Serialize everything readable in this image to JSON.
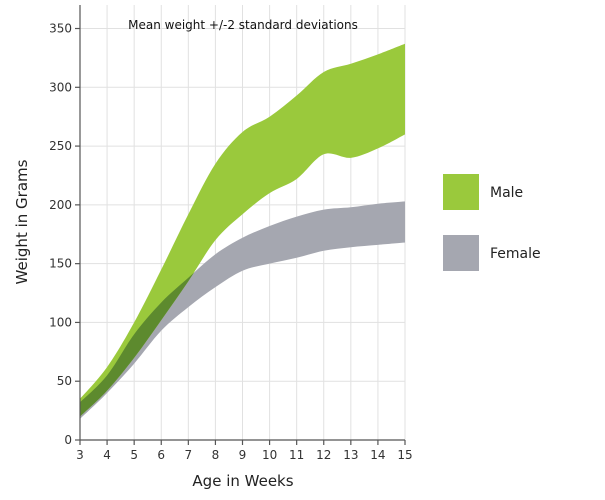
{
  "chart_data": {
    "type": "area",
    "annotation": "Mean weight +/-2 standard deviations",
    "xlabel": "Age in Weeks",
    "ylabel": "Weight in Grams",
    "xlim": [
      3,
      15
    ],
    "ylim": [
      0,
      370
    ],
    "x_ticks": [
      3,
      4,
      5,
      6,
      7,
      8,
      9,
      10,
      11,
      12,
      13,
      14,
      15
    ],
    "y_ticks": [
      0,
      50,
      100,
      150,
      200,
      250,
      300,
      350
    ],
    "grid": true,
    "legend_position": "right",
    "x": [
      3,
      4,
      5,
      6,
      7,
      8,
      9,
      10,
      11,
      12,
      13,
      14,
      15
    ],
    "series": [
      {
        "name": "Male",
        "color": "#9ac93c",
        "upper": [
          35,
          62,
          100,
          145,
          192,
          235,
          262,
          275,
          293,
          313,
          320,
          328,
          337
        ],
        "lower": [
          20,
          42,
          70,
          102,
          135,
          170,
          192,
          210,
          222,
          243,
          240,
          248,
          260
        ]
      },
      {
        "name": "Female",
        "color": "#a5a7b0",
        "upper": [
          32,
          55,
          90,
          117,
          138,
          158,
          172,
          182,
          190,
          196,
          198,
          201,
          203
        ],
        "lower": [
          18,
          40,
          65,
          93,
          113,
          130,
          144,
          150,
          155,
          161,
          164,
          166,
          168
        ]
      }
    ],
    "overlap_color": "#5d8a2e"
  }
}
